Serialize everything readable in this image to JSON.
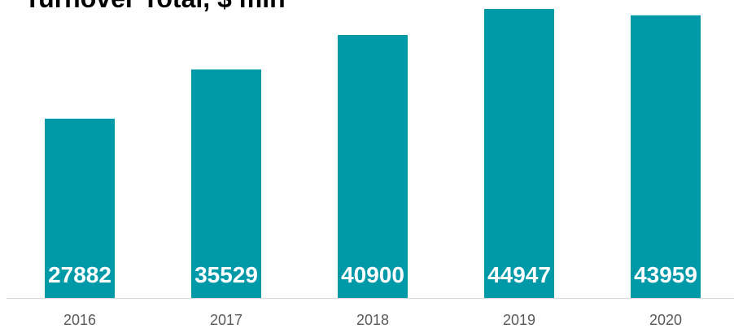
{
  "chart_data": {
    "type": "bar",
    "title": "Turnover Total, $ mln",
    "categories": [
      "2016",
      "2017",
      "2018",
      "2019",
      "2020"
    ],
    "values": [
      27882,
      35529,
      40900,
      44947,
      43959
    ],
    "color": "#0099a8"
  }
}
